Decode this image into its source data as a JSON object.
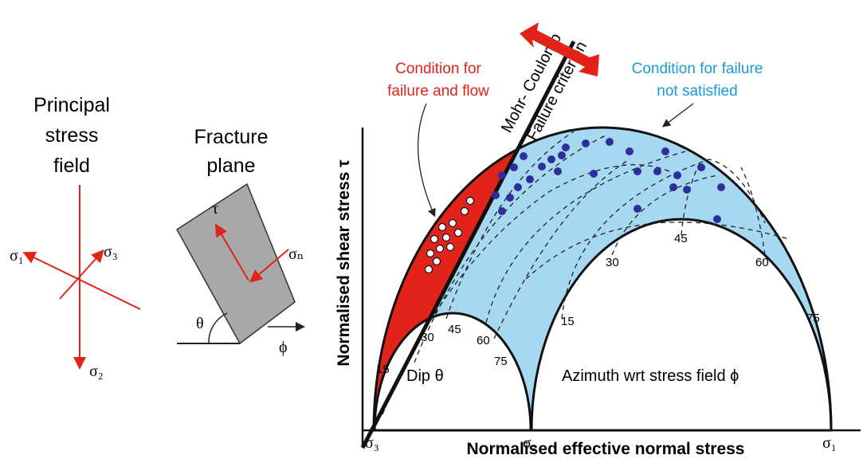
{
  "stress_field": {
    "title_lines": [
      "Principal",
      "stress",
      "field"
    ],
    "sigma1": "σ₁",
    "sigma2": "σ₂",
    "sigma3": "σ₃"
  },
  "fracture_plane": {
    "title_lines": [
      "Fracture",
      "plane"
    ],
    "tau": "τ",
    "sigma_n": "σₙ",
    "theta": "θ",
    "phi": "ϕ"
  },
  "mohr_diagram": {
    "failure_label_lines": [
      "Condition for",
      "failure and flow"
    ],
    "no_failure_label_lines": [
      "Condition for failure",
      "not satisfied"
    ],
    "criterion_lines": [
      "Mohr- Coulomb",
      "Failure criterion"
    ],
    "y_axis_label": "Normalised shear stress τ",
    "x_axis_label": "Normalised effective normal stress",
    "dip_label": "Dip θ",
    "azimuth_label": "Azimuth wrt stress field ϕ",
    "dip_ticks": [
      "15",
      "30",
      "45",
      "60",
      "75"
    ],
    "azimuth_ticks": [
      "15",
      "30",
      "45",
      "60",
      "75"
    ],
    "x_ticks": [
      "σ₃",
      "σ₂",
      "σ₁"
    ]
  }
}
